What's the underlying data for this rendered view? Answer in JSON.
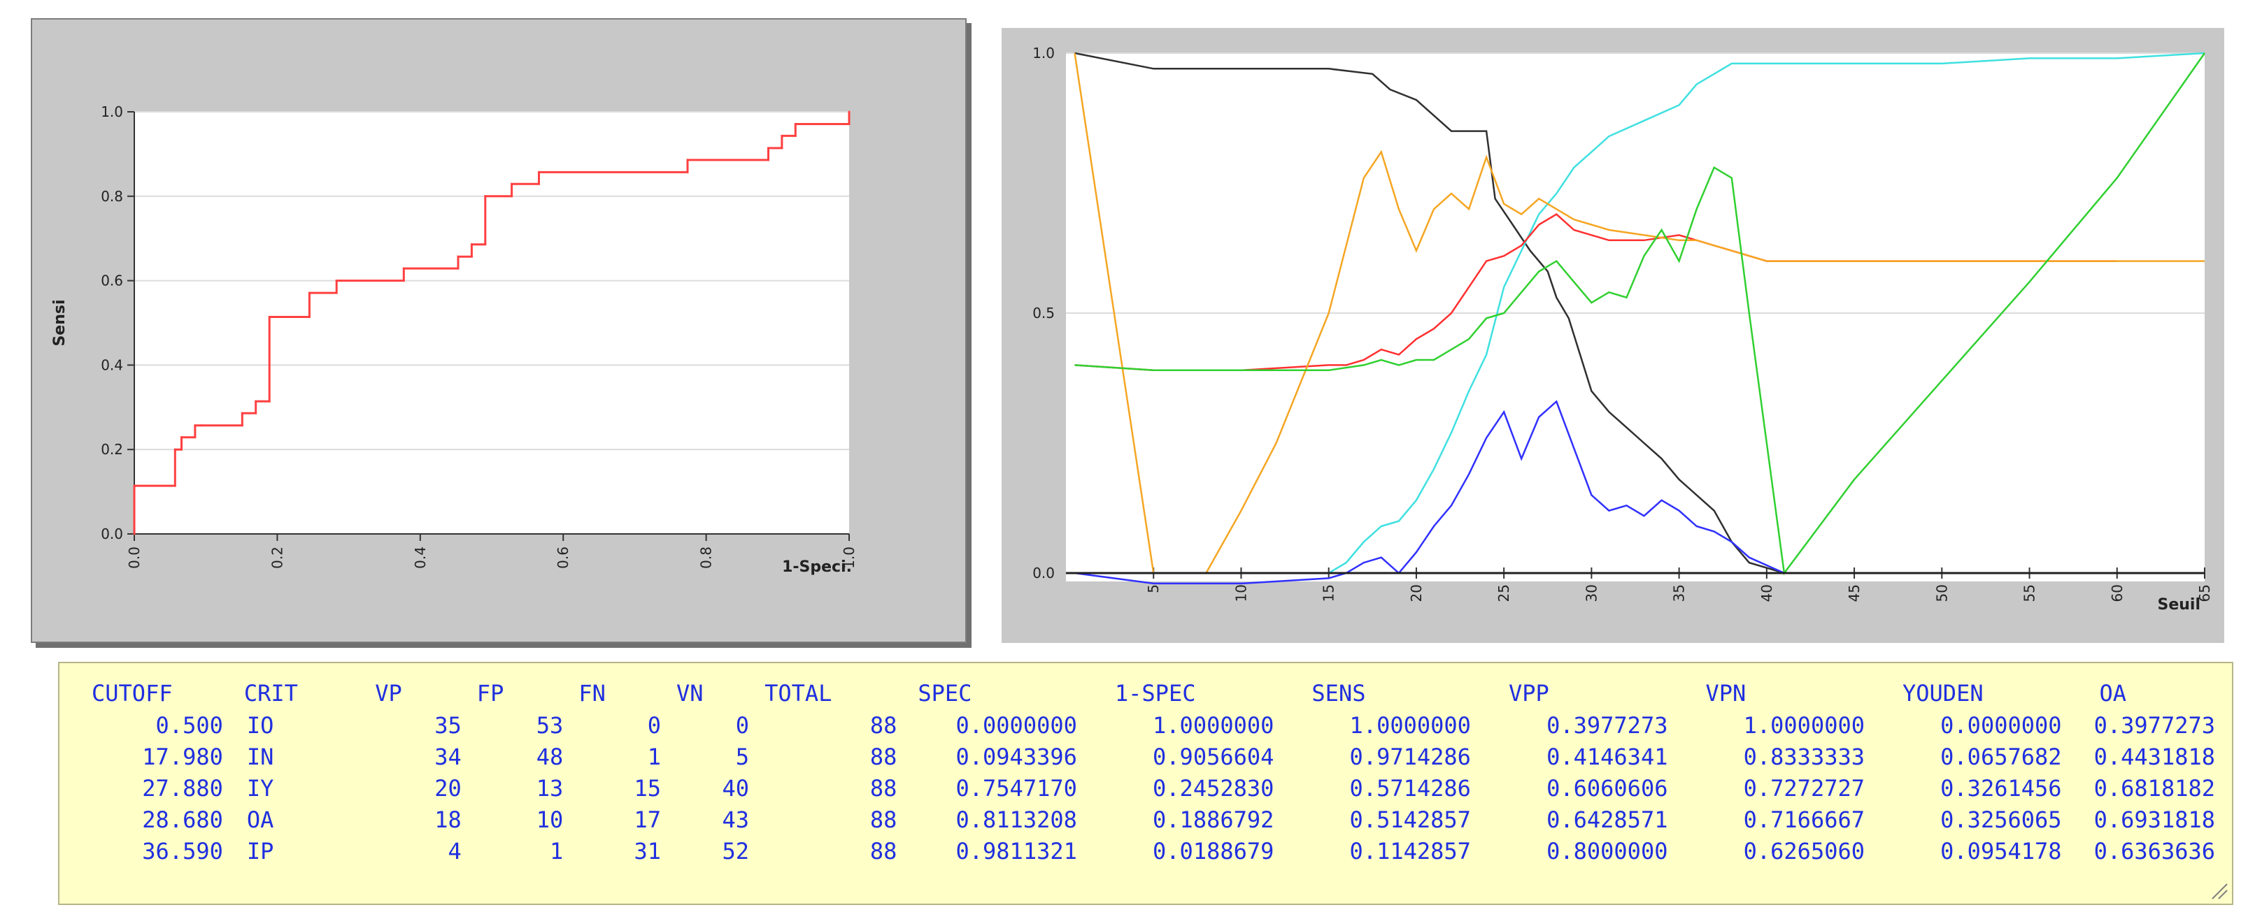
{
  "chart_data": [
    {
      "type": "line",
      "title": "",
      "xlabel": "1-Speci.",
      "ylabel": "Sensi",
      "xlim": [
        0,
        1
      ],
      "ylim": [
        0,
        1
      ],
      "grid": true,
      "x_ticks": [
        "0.0",
        "0.2",
        "0.4",
        "0.6",
        "0.8",
        "1.0"
      ],
      "y_ticks": [
        "0.0",
        "0.2",
        "0.4",
        "0.6",
        "0.8",
        "1.0"
      ],
      "series": [
        {
          "color": "#ff4040",
          "step": true,
          "x": [
            0.0,
            0.0,
            0.057,
            0.057,
            0.066,
            0.066,
            0.085,
            0.085,
            0.094,
            0.094,
            0.151,
            0.151,
            0.17,
            0.17,
            0.189,
            0.189,
            0.245,
            0.245,
            0.283,
            0.283,
            0.377,
            0.377,
            0.453,
            0.453,
            0.472,
            0.472,
            0.491,
            0.491,
            0.528,
            0.528,
            0.566,
            0.566,
            0.774,
            0.774,
            0.887,
            0.887,
            0.906,
            0.906,
            0.925,
            0.925,
            1.0,
            1.0
          ],
          "y": [
            0.0,
            0.114,
            0.114,
            0.2,
            0.2,
            0.229,
            0.229,
            0.257,
            0.257,
            0.257,
            0.257,
            0.286,
            0.286,
            0.314,
            0.314,
            0.514,
            0.514,
            0.571,
            0.571,
            0.6,
            0.6,
            0.629,
            0.629,
            0.657,
            0.657,
            0.686,
            0.686,
            0.8,
            0.8,
            0.829,
            0.829,
            0.857,
            0.857,
            0.886,
            0.886,
            0.914,
            0.914,
            0.943,
            0.943,
            0.971,
            0.971,
            1.0
          ]
        }
      ]
    },
    {
      "type": "line",
      "title": "",
      "xlabel": "Seuil",
      "ylabel": "",
      "xlim": [
        0,
        65
      ],
      "ylim": [
        0,
        1
      ],
      "grid": true,
      "x_ticks": [
        "5",
        "10",
        "15",
        "20",
        "25",
        "30",
        "35",
        "40",
        "45",
        "50",
        "55",
        "60",
        "65"
      ],
      "y_ticks": [
        "0.0",
        "0.5",
        "1.0"
      ],
      "series": [
        {
          "color": "#303030",
          "x": [
            0.5,
            5,
            10,
            15,
            17.5,
            18.5,
            20,
            21,
            22,
            24,
            24.5,
            25.5,
            26.5,
            27.5,
            28,
            28.7,
            30,
            31,
            32,
            33,
            34,
            35,
            36,
            37,
            38,
            39,
            41,
            43
          ],
          "y": [
            1.0,
            0.97,
            0.97,
            0.97,
            0.96,
            0.93,
            0.91,
            0.88,
            0.85,
            0.85,
            0.72,
            0.67,
            0.62,
            0.58,
            0.53,
            0.49,
            0.35,
            0.31,
            0.28,
            0.25,
            0.22,
            0.18,
            0.15,
            0.12,
            0.06,
            0.02,
            0.0,
            0.0
          ]
        },
        {
          "color": "#40e0e0",
          "x": [
            0.5,
            5,
            15,
            16,
            17,
            18,
            19,
            20,
            21,
            22,
            23,
            24,
            25,
            26,
            27,
            28,
            29,
            30,
            31,
            33,
            35,
            36,
            37,
            38,
            40,
            45,
            50,
            55,
            60,
            65
          ],
          "y": [
            0.0,
            0.0,
            0.0,
            0.02,
            0.06,
            0.09,
            0.1,
            0.14,
            0.2,
            0.27,
            0.35,
            0.42,
            0.55,
            0.62,
            0.69,
            0.73,
            0.78,
            0.81,
            0.84,
            0.87,
            0.9,
            0.94,
            0.96,
            0.98,
            0.98,
            0.98,
            0.98,
            0.99,
            0.99,
            1.0
          ]
        },
        {
          "color": "#ff3030",
          "x": [
            0.5,
            5,
            10,
            15,
            16,
            17,
            18,
            19,
            20,
            21,
            22,
            23,
            24,
            25,
            26,
            27,
            28,
            29,
            30,
            31,
            33,
            35,
            36,
            37,
            38,
            40,
            45,
            50,
            55,
            60
          ],
          "y": [
            0.4,
            0.39,
            0.39,
            0.4,
            0.4,
            0.41,
            0.43,
            0.42,
            0.45,
            0.47,
            0.5,
            0.55,
            0.6,
            0.61,
            0.63,
            0.67,
            0.69,
            0.66,
            0.65,
            0.64,
            0.64,
            0.65,
            0.64,
            0.63,
            0.62,
            0.6,
            0.6,
            0.6,
            0.6,
            0.6
          ]
        },
        {
          "color": "#f5a623",
          "x": [
            0.5,
            5,
            8,
            10,
            12,
            15,
            17,
            18,
            19,
            20,
            21,
            22,
            23,
            24,
            25,
            26,
            27,
            28,
            29,
            30,
            31,
            33,
            35,
            36,
            37,
            38,
            40,
            45,
            50,
            55,
            60,
            65
          ],
          "y": [
            1.0,
            0.0,
            0.0,
            0.12,
            0.25,
            0.5,
            0.76,
            0.81,
            0.7,
            0.62,
            0.7,
            0.73,
            0.7,
            0.8,
            0.71,
            0.69,
            0.72,
            0.7,
            0.68,
            0.67,
            0.66,
            0.65,
            0.64,
            0.64,
            0.63,
            0.62,
            0.6,
            0.6,
            0.6,
            0.6,
            0.6,
            0.6
          ]
        },
        {
          "color": "#30d030",
          "x": [
            0.5,
            5,
            10,
            15,
            17,
            18,
            19,
            20,
            21,
            22,
            23,
            24,
            25,
            26,
            27,
            28,
            29,
            30,
            31,
            32,
            33,
            34,
            35,
            36,
            37,
            38,
            39,
            41,
            45,
            50,
            55,
            60,
            65
          ],
          "y": [
            0.4,
            0.39,
            0.39,
            0.39,
            0.4,
            0.41,
            0.4,
            0.41,
            0.41,
            0.43,
            0.45,
            0.49,
            0.5,
            0.54,
            0.58,
            0.6,
            0.56,
            0.52,
            0.54,
            0.53,
            0.61,
            0.66,
            0.6,
            0.7,
            0.78,
            0.76,
            0.5,
            0.0,
            0.18,
            0.37,
            0.56,
            0.76,
            1.0
          ]
        },
        {
          "color": "#3030ff",
          "x": [
            0.5,
            5,
            10,
            15,
            16,
            17,
            18,
            19,
            20,
            21,
            22,
            23,
            24,
            25,
            26,
            27,
            28,
            29,
            30,
            31,
            32,
            33,
            34,
            35,
            36,
            37,
            38,
            39,
            41,
            45,
            50,
            55,
            60,
            63
          ],
          "y": [
            0.0,
            -0.02,
            -0.02,
            -0.01,
            0.0,
            0.02,
            0.03,
            0.0,
            0.04,
            0.09,
            0.13,
            0.19,
            0.26,
            0.31,
            0.22,
            0.3,
            0.33,
            0.24,
            0.15,
            0.12,
            0.13,
            0.11,
            0.14,
            0.12,
            0.09,
            0.08,
            0.06,
            0.03,
            0.0,
            0.0,
            0.0,
            0.0,
            0.0,
            0.0
          ]
        }
      ]
    }
  ],
  "table": {
    "headers": [
      "CUTOFF",
      "CRIT",
      "VP",
      "FP",
      "FN",
      "VN",
      "TOTAL",
      "SPEC",
      "1-SPEC",
      "SENS",
      "VPP",
      "VPN",
      "YOUDEN",
      "OA"
    ],
    "rows": [
      [
        "0.500",
        "IO",
        "35",
        "53",
        "0",
        "0",
        "88",
        "0.0000000",
        "1.0000000",
        "1.0000000",
        "0.3977273",
        "1.0000000",
        "0.0000000",
        "0.3977273"
      ],
      [
        "17.980",
        "IN",
        "34",
        "48",
        "1",
        "5",
        "88",
        "0.0943396",
        "0.9056604",
        "0.9714286",
        "0.4146341",
        "0.8333333",
        "0.0657682",
        "0.4431818"
      ],
      [
        "27.880",
        "IY",
        "20",
        "13",
        "15",
        "40",
        "88",
        "0.7547170",
        "0.2452830",
        "0.5714286",
        "0.6060606",
        "0.7272727",
        "0.3261456",
        "0.6818182"
      ],
      [
        "28.680",
        "OA",
        "18",
        "10",
        "17",
        "43",
        "88",
        "0.8113208",
        "0.1886792",
        "0.5142857",
        "0.6428571",
        "0.7166667",
        "0.3256065",
        "0.6931818"
      ],
      [
        "36.590",
        "IP",
        "4",
        "1",
        "31",
        "52",
        "88",
        "0.9811321",
        "0.0188679",
        "0.1142857",
        "0.8000000",
        "0.6265060",
        "0.0954178",
        "0.6363636"
      ]
    ]
  },
  "colors": {
    "panel_bg": "#c8c8c8",
    "table_bg": "#ffffc8",
    "table_text": "#1f2fe0",
    "grid": "#dcdcdc"
  }
}
